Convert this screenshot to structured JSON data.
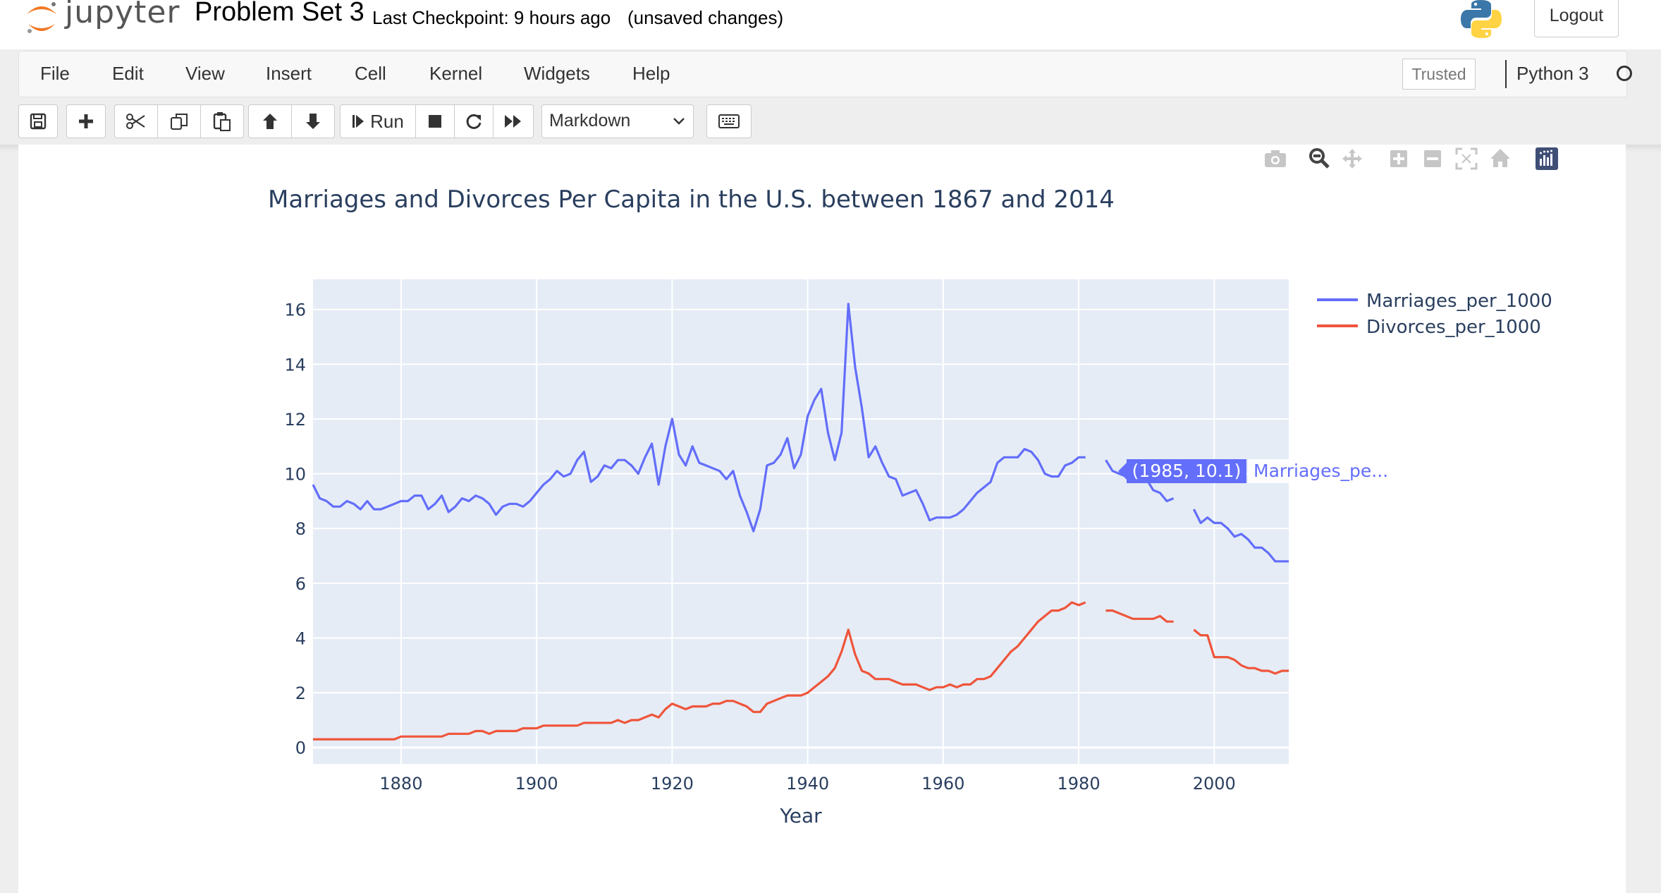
{
  "header": {
    "logo_text": "jupyter",
    "notebook_title": "Problem Set 3",
    "checkpoint": "Last Checkpoint: 9 hours ago",
    "autosave_status": "(unsaved changes)",
    "logout_label": "Logout"
  },
  "menubar": {
    "items": [
      "File",
      "Edit",
      "View",
      "Insert",
      "Cell",
      "Kernel",
      "Widgets",
      "Help"
    ],
    "trusted_label": "Trusted",
    "kernel_name": "Python 3"
  },
  "toolbar": {
    "run_label": "Run",
    "cell_type": "Markdown"
  },
  "plot": {
    "hover_label": "(1985, 10.1)",
    "hover_series": "Marriages_pe..."
  },
  "colors": {
    "marriages": "#636efa",
    "divorces": "#ef553b",
    "plot_bg": "#e5ecf6",
    "text": "#2a3f5f"
  },
  "chart_data": {
    "type": "line",
    "title": "Marriages and Divorces Per Capita in the U.S. between 1867 and 2014",
    "xlabel": "Year",
    "ylabel": "",
    "xlim": [
      1867,
      2011
    ],
    "ylim": [
      -0.6,
      17.1
    ],
    "xticks": [
      1880,
      1900,
      1920,
      1940,
      1960,
      1980,
      2000
    ],
    "yticks": [
      0,
      2,
      4,
      6,
      8,
      10,
      12,
      14,
      16
    ],
    "grid": true,
    "legend": "top-right",
    "series": [
      {
        "name": "Marriages_per_1000",
        "x": [
          1867,
          1868,
          1869,
          1870,
          1871,
          1872,
          1873,
          1874,
          1875,
          1876,
          1877,
          1878,
          1879,
          1880,
          1881,
          1882,
          1883,
          1884,
          1885,
          1886,
          1887,
          1888,
          1889,
          1890,
          1891,
          1892,
          1893,
          1894,
          1895,
          1896,
          1897,
          1898,
          1899,
          1900,
          1901,
          1902,
          1903,
          1904,
          1905,
          1906,
          1907,
          1908,
          1909,
          1910,
          1911,
          1912,
          1913,
          1914,
          1915,
          1916,
          1917,
          1918,
          1919,
          1920,
          1921,
          1922,
          1923,
          1924,
          1925,
          1926,
          1927,
          1928,
          1929,
          1930,
          1931,
          1932,
          1933,
          1934,
          1935,
          1936,
          1937,
          1938,
          1939,
          1940,
          1941,
          1942,
          1943,
          1944,
          1945,
          1946,
          1947,
          1948,
          1949,
          1950,
          1951,
          1952,
          1953,
          1954,
          1955,
          1956,
          1957,
          1958,
          1959,
          1960,
          1961,
          1962,
          1963,
          1964,
          1965,
          1966,
          1967,
          1968,
          1969,
          1970,
          1971,
          1972,
          1973,
          1974,
          1975,
          1976,
          1977,
          1978,
          1979,
          1980,
          1981,
          1982,
          1983,
          1984,
          1985,
          1986,
          1987,
          1988,
          1989,
          1990,
          1991,
          1992,
          1993,
          1994,
          1995,
          1996,
          1997,
          1998,
          1999,
          2000,
          2001,
          2002,
          2003,
          2004,
          2005,
          2006,
          2007,
          2008,
          2009,
          2010,
          2011
        ],
        "y": [
          9.6,
          9.1,
          9.0,
          8.8,
          8.8,
          9.0,
          8.9,
          8.7,
          9.0,
          8.7,
          8.7,
          8.8,
          8.9,
          9.0,
          9.0,
          9.2,
          9.2,
          8.7,
          8.9,
          9.2,
          8.6,
          8.8,
          9.1,
          9.0,
          9.2,
          9.1,
          8.9,
          8.5,
          8.8,
          8.9,
          8.9,
          8.8,
          9.0,
          9.3,
          9.6,
          9.8,
          10.1,
          9.9,
          10.0,
          10.5,
          10.8,
          9.7,
          9.9,
          10.3,
          10.2,
          10.5,
          10.5,
          10.3,
          10.0,
          10.6,
          11.1,
          9.6,
          11.0,
          12.0,
          10.7,
          10.3,
          11.0,
          10.4,
          10.3,
          10.2,
          10.1,
          9.8,
          10.1,
          9.2,
          8.6,
          7.9,
          8.7,
          10.3,
          10.4,
          10.7,
          11.3,
          10.2,
          10.7,
          12.1,
          12.7,
          13.1,
          11.5,
          10.5,
          11.5,
          16.2,
          13.9,
          12.4,
          10.6,
          11.0,
          10.4,
          9.9,
          9.8,
          9.2,
          9.3,
          9.4,
          8.9,
          8.3,
          8.4,
          8.4,
          8.4,
          8.5,
          8.7,
          9.0,
          9.3,
          9.5,
          9.7,
          10.4,
          10.6,
          10.6,
          10.6,
          10.9,
          10.8,
          10.5,
          10.0,
          9.9,
          9.9,
          10.3,
          10.4,
          10.6,
          10.6,
          null,
          null,
          10.5,
          10.1,
          10.0,
          9.9,
          9.8,
          9.7,
          9.8,
          9.4,
          9.3,
          9.0,
          9.1,
          null,
          null,
          8.7,
          8.2,
          8.4,
          8.2,
          8.2,
          8.0,
          7.7,
          7.8,
          7.6,
          7.3,
          7.3,
          7.1,
          6.8,
          6.8,
          6.8
        ]
      },
      {
        "name": "Divorces_per_1000",
        "x": [
          1867,
          1868,
          1869,
          1870,
          1871,
          1872,
          1873,
          1874,
          1875,
          1876,
          1877,
          1878,
          1879,
          1880,
          1881,
          1882,
          1883,
          1884,
          1885,
          1886,
          1887,
          1888,
          1889,
          1890,
          1891,
          1892,
          1893,
          1894,
          1895,
          1896,
          1897,
          1898,
          1899,
          1900,
          1901,
          1902,
          1903,
          1904,
          1905,
          1906,
          1907,
          1908,
          1909,
          1910,
          1911,
          1912,
          1913,
          1914,
          1915,
          1916,
          1917,
          1918,
          1919,
          1920,
          1921,
          1922,
          1923,
          1924,
          1925,
          1926,
          1927,
          1928,
          1929,
          1930,
          1931,
          1932,
          1933,
          1934,
          1935,
          1936,
          1937,
          1938,
          1939,
          1940,
          1941,
          1942,
          1943,
          1944,
          1945,
          1946,
          1947,
          1948,
          1949,
          1950,
          1951,
          1952,
          1953,
          1954,
          1955,
          1956,
          1957,
          1958,
          1959,
          1960,
          1961,
          1962,
          1963,
          1964,
          1965,
          1966,
          1967,
          1968,
          1969,
          1970,
          1971,
          1972,
          1973,
          1974,
          1975,
          1976,
          1977,
          1978,
          1979,
          1980,
          1981,
          1982,
          1983,
          1984,
          1985,
          1986,
          1987,
          1988,
          1989,
          1990,
          1991,
          1992,
          1993,
          1994,
          1995,
          1996,
          1997,
          1998,
          1999,
          2000,
          2001,
          2002,
          2003,
          2004,
          2005,
          2006,
          2007,
          2008,
          2009,
          2010,
          2011
        ],
        "y": [
          0.3,
          0.3,
          0.3,
          0.3,
          0.3,
          0.3,
          0.3,
          0.3,
          0.3,
          0.3,
          0.3,
          0.3,
          0.3,
          0.4,
          0.4,
          0.4,
          0.4,
          0.4,
          0.4,
          0.4,
          0.5,
          0.5,
          0.5,
          0.5,
          0.6,
          0.6,
          0.5,
          0.6,
          0.6,
          0.6,
          0.6,
          0.7,
          0.7,
          0.7,
          0.8,
          0.8,
          0.8,
          0.8,
          0.8,
          0.8,
          0.9,
          0.9,
          0.9,
          0.9,
          0.9,
          1.0,
          0.9,
          1.0,
          1.0,
          1.1,
          1.2,
          1.1,
          1.4,
          1.6,
          1.5,
          1.4,
          1.5,
          1.5,
          1.5,
          1.6,
          1.6,
          1.7,
          1.7,
          1.6,
          1.5,
          1.3,
          1.3,
          1.6,
          1.7,
          1.8,
          1.9,
          1.9,
          1.9,
          2.0,
          2.2,
          2.4,
          2.6,
          2.9,
          3.5,
          4.3,
          3.4,
          2.8,
          2.7,
          2.5,
          2.5,
          2.5,
          2.4,
          2.3,
          2.3,
          2.3,
          2.2,
          2.1,
          2.2,
          2.2,
          2.3,
          2.2,
          2.3,
          2.3,
          2.5,
          2.5,
          2.6,
          2.9,
          3.2,
          3.5,
          3.7,
          4.0,
          4.3,
          4.6,
          4.8,
          5.0,
          5.0,
          5.1,
          5.3,
          5.2,
          5.3,
          null,
          null,
          5.0,
          5.0,
          4.9,
          4.8,
          4.7,
          4.7,
          4.7,
          4.7,
          4.8,
          4.6,
          4.6,
          null,
          null,
          4.3,
          4.1,
          4.1,
          3.3,
          3.3,
          3.3,
          3.2,
          3.0,
          2.9,
          2.9,
          2.8,
          2.8,
          2.7,
          2.8,
          2.8
        ]
      }
    ]
  }
}
